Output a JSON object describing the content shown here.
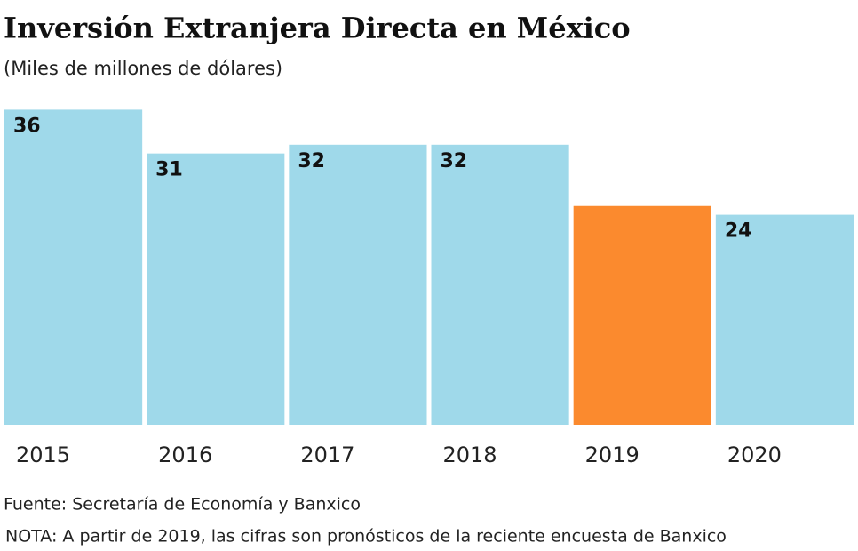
{
  "chart_data": {
    "type": "bar",
    "title": "Inversión Extranjera Directa en México",
    "subtitle": "(Miles de millones de dólares)",
    "categories": [
      "2015",
      "2016",
      "2017",
      "2018",
      "2019",
      "2020"
    ],
    "values": [
      36,
      31,
      32,
      32,
      25,
      24
    ],
    "colors": [
      "#9fd9ea",
      "#9fd9ea",
      "#9fd9ea",
      "#9fd9ea",
      "#fb8a2e",
      "#9fd9ea"
    ],
    "source": "Fuente: Secretaría de Economía y Banxico",
    "note": "NOTA: A partir de 2019, las cifras son pronósticos de la reciente encuesta de Banxico"
  }
}
